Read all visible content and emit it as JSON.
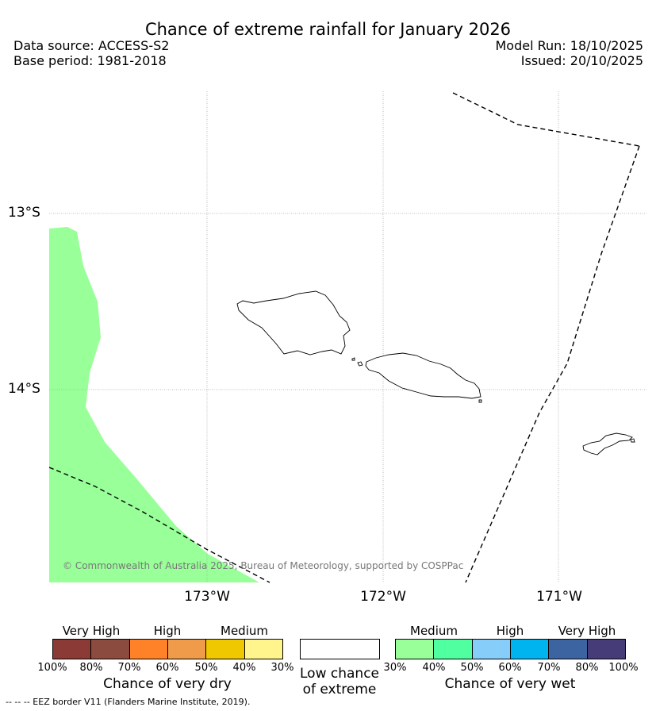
{
  "title": "Chance of extreme rainfall for January 2026",
  "header": {
    "data_source": "Data source: ACCESS-S2",
    "base_period": "Base period: 1981-2018",
    "model_run": "Model Run: 18/10/2025",
    "issued": "Issued: 20/10/2025"
  },
  "map": {
    "latitude_labels": [
      "13°S",
      "14°S"
    ],
    "longitude_labels": [
      "173°W",
      "172°W",
      "171°W"
    ],
    "shaded_region_category": "Medium 30%-40% chance of very wet",
    "shaded_region_color": "#99ff99",
    "copyright": "© Commonwealth of Australia 2025, Bureau of Meteorology, supported by COSPPac"
  },
  "legend": {
    "dry": {
      "categories": [
        "Very High",
        "High",
        "Medium"
      ],
      "ticks": [
        "100%",
        "80%",
        "70%",
        "60%",
        "50%",
        "40%",
        "30%"
      ],
      "colors": [
        "#8b3a36",
        "#8b4c3f",
        "#ff8228",
        "#f09b4a",
        "#f0c800",
        "#fff58c"
      ],
      "caption": "Chance of very dry"
    },
    "low": {
      "caption_line1": "Low chance",
      "caption_line2": "of extreme",
      "color": "#ffffff"
    },
    "wet": {
      "categories": [
        "Medium",
        "High",
        "Very High"
      ],
      "ticks": [
        "30%",
        "40%",
        "50%",
        "60%",
        "70%",
        "80%",
        "100%"
      ],
      "colors": [
        "#99ff99",
        "#50ffa0",
        "#87cdfa",
        "#00b4f0",
        "#3c64a0",
        "#463c78"
      ],
      "caption": "Chance of very wet"
    }
  },
  "footer": "--  --  -- EEZ border V11 (Flanders Marine Institute, 2019)."
}
